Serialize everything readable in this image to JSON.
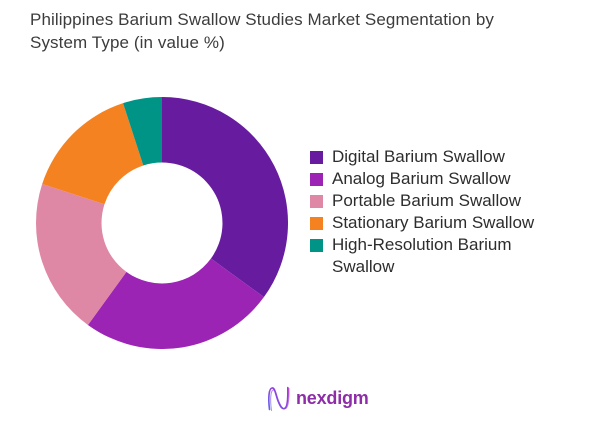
{
  "title": "Philippines Barium Swallow Studies Market Segmentation by System Type (in value %)",
  "chart_data": {
    "type": "pie",
    "subtype": "donut",
    "title": "Philippines Barium Swallow Studies Market Segmentation by System Type (in value %)",
    "values_unit": "value %",
    "direction": "clockwise",
    "start_angle_deg": 0,
    "inner_radius_ratio": 0.48,
    "legend_position": "right",
    "data_labels": "none",
    "segments": [
      {
        "label": "Digital Barium Swallow",
        "value": 35,
        "color": "#671CA0"
      },
      {
        "label": "Analog Barium Swallow",
        "value": 25,
        "color": "#9B24B5"
      },
      {
        "label": "Portable Barium Swallow",
        "value": 20,
        "color": "#DE88A5"
      },
      {
        "label": "Stationary Barium Swallow",
        "value": 15,
        "color": "#F58220"
      },
      {
        "label": "High-Resolution Barium Swallow",
        "value": 5,
        "color": "#009487"
      }
    ]
  },
  "footer": {
    "logo_text": "nexdigm",
    "logo_text_color": "#8E2DA8",
    "logo_gradient_start": "#5E60E7",
    "logo_gradient_end": "#B42BD6"
  }
}
